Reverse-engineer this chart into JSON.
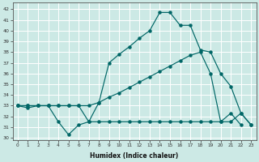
{
  "xlabel": "Humidex (Indice chaleur)",
  "background_color": "#cce9e5",
  "grid_color": "#ffffff",
  "line_color": "#006666",
  "xlim": [
    -0.5,
    23.5
  ],
  "ylim": [
    29.8,
    42.6
  ],
  "xticks": [
    0,
    1,
    2,
    3,
    4,
    5,
    6,
    7,
    8,
    9,
    10,
    11,
    12,
    13,
    14,
    15,
    16,
    17,
    18,
    19,
    20,
    21,
    22,
    23
  ],
  "yticks": [
    30,
    31,
    32,
    33,
    34,
    35,
    36,
    37,
    38,
    39,
    40,
    41,
    42
  ],
  "series": [
    [
      33,
      32.8,
      33,
      33,
      31.5,
      30.3,
      31.2,
      31.5,
      33.3,
      37.0,
      37.8,
      38.5,
      39.3,
      40.0,
      41.7,
      41.7,
      40.5,
      40.5,
      38.2,
      38.0,
      36.0,
      34.8,
      32.3,
      31.2
    ],
    [
      33,
      33,
      33,
      33,
      33,
      33,
      33,
      33,
      33.3,
      33.8,
      34.2,
      34.7,
      35.2,
      35.7,
      36.2,
      36.7,
      37.2,
      37.7,
      38.0,
      36.0,
      31.5,
      32.3,
      31.2,
      null
    ],
    [
      33,
      33,
      33,
      33,
      33,
      33,
      33,
      31.5,
      31.5,
      31.5,
      31.5,
      31.5,
      31.5,
      31.5,
      31.5,
      31.5,
      31.5,
      31.5,
      31.5,
      31.5,
      31.5,
      31.5,
      32.3,
      31.2
    ]
  ]
}
